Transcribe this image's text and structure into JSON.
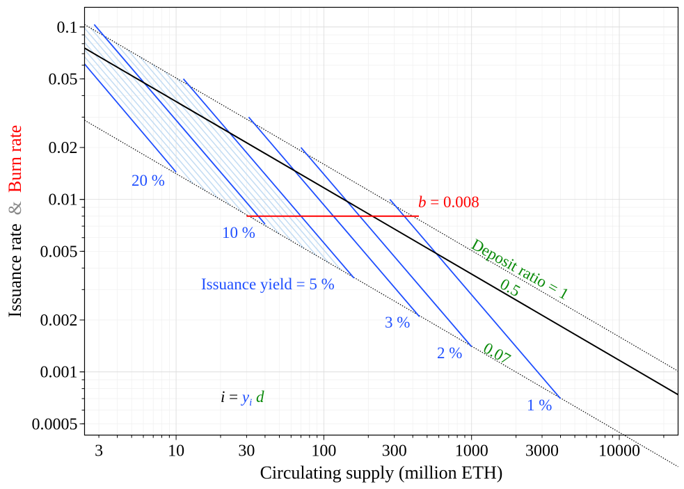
{
  "chart_data": {
    "type": "line",
    "xscale": "log",
    "yscale": "log",
    "xlim": [
      2.4,
      25000
    ],
    "ylim": [
      0.00043,
      0.13
    ],
    "xlabel": "Circulating supply (million ETH)",
    "ylabel_parts": [
      "Issuance rate",
      "&",
      "Burn rate"
    ],
    "x_ticks": [
      3,
      10,
      30,
      100,
      300,
      1000,
      3000,
      10000
    ],
    "x_tick_labels": [
      "3",
      "10",
      "30",
      "100",
      "300",
      "1000",
      "3000",
      "10000"
    ],
    "y_ticks": [
      0.0005,
      0.001,
      0.002,
      0.005,
      0.01,
      0.02,
      0.05,
      0.1
    ],
    "y_tick_labels": [
      "0.0005",
      "0.001",
      "0.002",
      "0.005",
      "0.01",
      "0.02",
      "0.05",
      "0.1"
    ],
    "grid": true,
    "deposit_ratio_lines": [
      {
        "d": 1,
        "x": [
          2.4,
          25000
        ],
        "y": [
          0.1033,
          0.00101
        ]
      },
      {
        "d": 0.07,
        "x": [
          2.4,
          25000
        ],
        "y": [
          0.02879,
          0.000282
        ]
      }
    ],
    "issuance_curve": {
      "x": [
        2.4,
        25000
      ],
      "y": [
        0.0754,
        0.000738
      ]
    },
    "issuance_yield_lines": [
      {
        "yield": "20 %",
        "x": [
          2.4,
          10
        ],
        "y": [
          0.061,
          0.0144
        ]
      },
      {
        "yield": "10 %",
        "x": [
          2.79,
          40
        ],
        "y": [
          0.1033,
          0.0072
        ]
      },
      {
        "yield": "5 %",
        "x": [
          11.2,
          160
        ],
        "y": [
          0.05,
          0.0035
        ]
      },
      {
        "yield": "3 %",
        "x": [
          31,
          444
        ],
        "y": [
          0.03,
          0.00209
        ]
      },
      {
        "yield": "2 %",
        "x": [
          70,
          1000
        ],
        "y": [
          0.02,
          0.0014
        ]
      },
      {
        "yield": "1 %",
        "x": [
          280,
          4000
        ],
        "y": [
          0.01,
          0.0007
        ]
      }
    ],
    "faint_yield_lines": {
      "count": 13,
      "between": [
        "20 %",
        "5 %"
      ]
    },
    "burn_line": {
      "x": [
        30,
        440
      ],
      "y": [
        0.008,
        0.008
      ]
    },
    "annotations": {
      "yield_20": "20 %",
      "yield_10": "10 %",
      "yield_5": "Issuance yield = 5 %",
      "yield_3": "3 %",
      "yield_2": "2 %",
      "yield_1": "1 %",
      "burn_b": "b",
      "burn_value": " = 0.008",
      "deposit_1": "Deposit ratio = 1",
      "deposit_05": "0.5",
      "deposit_007": "0.07",
      "formula_i": "i",
      "formula_eq": " = ",
      "formula_y": "y",
      "formula_sub": "i",
      "formula_d": " d"
    },
    "colors": {
      "yield": "#1f4fff",
      "yield_faint": "#c3dcf3",
      "burn": "#ff0000",
      "deposit": "#0a8a0a",
      "issuance": "#000000",
      "grid": "#e3e3e3"
    }
  }
}
